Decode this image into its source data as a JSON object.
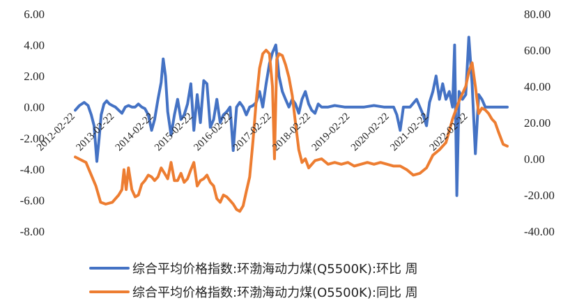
{
  "chart_data": {
    "type": "line",
    "title": "",
    "x_tick_labels": [
      "2012-02-22",
      "2013-02-22",
      "2014-02-22",
      "2015-02-22",
      "2016-02-22",
      "2017-02-22",
      "2018-02-22",
      "2019-02-22",
      "2020-02-22",
      "2021-02-22",
      "2022-02-22"
    ],
    "x_range": [
      "2012-02-22",
      "2023-02-22"
    ],
    "y_left": {
      "ticks": [
        "6.00",
        "4.00",
        "2.00",
        "0.00",
        "-2.00",
        "-4.00",
        "-6.00",
        "-8.00"
      ],
      "ylim": [
        -8,
        6
      ]
    },
    "y_right": {
      "ticks": [
        "80.00",
        "60.00",
        "40.00",
        "20.00",
        "0.00",
        "-20.00",
        "-40.00"
      ],
      "ylim": [
        -40,
        80
      ]
    },
    "grid": false,
    "legend_position": "bottom",
    "series": [
      {
        "name": "综合平均价格指数:环渤海动力煤(Q5500K):环比 周",
        "axis": "left",
        "color": "#4472C4",
        "points": [
          [
            "2012-02-22",
            -0.2
          ],
          [
            "2012-04-01",
            0.1
          ],
          [
            "2012-05-15",
            0.3
          ],
          [
            "2012-06-20",
            0.1
          ],
          [
            "2012-07-20",
            -0.5
          ],
          [
            "2012-08-15",
            -1.2
          ],
          [
            "2012-09-10",
            -3.5
          ],
          [
            "2012-10-01",
            -2.0
          ],
          [
            "2012-10-20",
            -0.5
          ],
          [
            "2012-11-15",
            0.2
          ],
          [
            "2012-12-10",
            0.4
          ],
          [
            "2013-01-05",
            0.2
          ],
          [
            "2013-02-01",
            0.1
          ],
          [
            "2013-03-01",
            0.0
          ],
          [
            "2013-04-01",
            -0.2
          ],
          [
            "2013-05-01",
            -0.4
          ],
          [
            "2013-06-01",
            0.0
          ],
          [
            "2013-07-01",
            0.1
          ],
          [
            "2013-08-01",
            0.0
          ],
          [
            "2013-09-01",
            0.0
          ],
          [
            "2013-10-01",
            0.2
          ],
          [
            "2013-11-01",
            0.0
          ],
          [
            "2013-12-01",
            -0.1
          ],
          [
            "2014-01-01",
            -0.5
          ],
          [
            "2014-02-01",
            -1.5
          ],
          [
            "2014-03-01",
            -0.8
          ],
          [
            "2014-04-01",
            0.5
          ],
          [
            "2014-05-01",
            1.6
          ],
          [
            "2014-05-20",
            3.1
          ],
          [
            "2014-06-10",
            2.0
          ],
          [
            "2014-07-01",
            -0.3
          ],
          [
            "2014-08-01",
            -1.8
          ],
          [
            "2014-09-01",
            -0.5
          ],
          [
            "2014-10-01",
            0.5
          ],
          [
            "2014-11-01",
            -0.8
          ],
          [
            "2014-12-01",
            -0.5
          ],
          [
            "2015-01-01",
            0.2
          ],
          [
            "2015-02-01",
            1.5
          ],
          [
            "2015-03-01",
            -1.5
          ],
          [
            "2015-04-01",
            0.8
          ],
          [
            "2015-05-01",
            -1.0
          ],
          [
            "2015-06-01",
            1.7
          ],
          [
            "2015-07-01",
            1.5
          ],
          [
            "2015-08-01",
            -1.3
          ],
          [
            "2015-09-01",
            -0.8
          ],
          [
            "2015-10-01",
            0.5
          ],
          [
            "2015-11-01",
            -1.0
          ],
          [
            "2015-12-01",
            -0.5
          ],
          [
            "2016-01-01",
            -0.3
          ],
          [
            "2016-02-01",
            0.0
          ],
          [
            "2016-03-01",
            -2.8
          ],
          [
            "2016-04-01",
            0.0
          ],
          [
            "2016-05-01",
            0.3
          ],
          [
            "2016-06-01",
            0.0
          ],
          [
            "2016-07-01",
            -0.5
          ],
          [
            "2016-08-01",
            0.0
          ],
          [
            "2016-09-01",
            0.1
          ],
          [
            "2016-10-01",
            0.3
          ],
          [
            "2016-11-01",
            1.0
          ],
          [
            "2016-12-01",
            0.0
          ],
          [
            "2017-01-01",
            1.5
          ],
          [
            "2017-02-01",
            2.8
          ],
          [
            "2017-03-01",
            3.5
          ],
          [
            "2017-04-01",
            4.0
          ],
          [
            "2017-05-01",
            2.0
          ],
          [
            "2017-06-01",
            1.0
          ],
          [
            "2017-07-01",
            0.5
          ],
          [
            "2017-08-01",
            0.0
          ],
          [
            "2017-09-01",
            0.5
          ],
          [
            "2017-10-01",
            0.2
          ],
          [
            "2017-11-01",
            -0.4
          ],
          [
            "2017-12-01",
            0.5
          ],
          [
            "2018-01-01",
            1.0
          ],
          [
            "2018-02-01",
            0.2
          ],
          [
            "2018-03-01",
            -0.2
          ],
          [
            "2018-04-01",
            -0.4
          ],
          [
            "2018-05-01",
            0.2
          ],
          [
            "2018-06-01",
            0.0
          ],
          [
            "2018-08-01",
            0.0
          ],
          [
            "2018-10-01",
            0.1
          ],
          [
            "2019-01-01",
            0.0
          ],
          [
            "2019-04-01",
            0.0
          ],
          [
            "2019-07-01",
            0.0
          ],
          [
            "2019-10-01",
            0.1
          ],
          [
            "2020-01-01",
            0.0
          ],
          [
            "2020-04-01",
            0.0
          ],
          [
            "2020-05-01",
            -0.5
          ],
          [
            "2020-06-01",
            -1.5
          ],
          [
            "2020-07-01",
            0.0
          ],
          [
            "2020-09-01",
            0.0
          ],
          [
            "2020-11-01",
            0.5
          ],
          [
            "2021-01-01",
            -0.5
          ],
          [
            "2021-02-01",
            -1.2
          ],
          [
            "2021-03-01",
            0.3
          ],
          [
            "2021-04-01",
            1.0
          ],
          [
            "2021-05-01",
            2.0
          ],
          [
            "2021-06-01",
            0.5
          ],
          [
            "2021-07-01",
            1.5
          ],
          [
            "2021-08-01",
            0.5
          ],
          [
            "2021-09-01",
            1.0
          ],
          [
            "2021-10-01",
            0.0
          ],
          [
            "2021-10-20",
            4.0
          ],
          [
            "2021-11-10",
            -5.7
          ],
          [
            "2021-12-01",
            1.0
          ],
          [
            "2022-01-01",
            0.5
          ],
          [
            "2022-02-01",
            0.8
          ],
          [
            "2022-03-01",
            4.5
          ],
          [
            "2022-04-01",
            1.5
          ],
          [
            "2022-05-01",
            -3.0
          ],
          [
            "2022-06-01",
            0.8
          ],
          [
            "2022-07-01",
            0.5
          ],
          [
            "2022-08-01",
            0.0
          ],
          [
            "2022-09-01",
            0.0
          ],
          [
            "2022-10-01",
            0.0
          ],
          [
            "2022-12-01",
            0.0
          ],
          [
            "2023-02-22",
            0.0
          ]
        ]
      },
      {
        "name": "综合平均价格指数:环渤海动力煤(O5500K):同比 周",
        "axis": "right",
        "color": "#ED7D31",
        "points": [
          [
            "2012-02-22",
            1.0
          ],
          [
            "2012-06-01",
            -2.0
          ],
          [
            "2012-09-01",
            -15.0
          ],
          [
            "2012-10-15",
            -24.0
          ],
          [
            "2012-12-01",
            -25.0
          ],
          [
            "2013-02-01",
            -24.0
          ],
          [
            "2013-04-01",
            -20.0
          ],
          [
            "2013-05-01",
            -17.0
          ],
          [
            "2013-05-20",
            -6.0
          ],
          [
            "2013-06-10",
            -17.0
          ],
          [
            "2013-07-01",
            -5.0
          ],
          [
            "2013-08-01",
            -17.0
          ],
          [
            "2013-09-01",
            -21.0
          ],
          [
            "2013-10-01",
            -20.0
          ],
          [
            "2013-11-01",
            -14.0
          ],
          [
            "2013-12-01",
            -12.0
          ],
          [
            "2014-01-01",
            -9.0
          ],
          [
            "2014-02-01",
            -10.0
          ],
          [
            "2014-03-01",
            -12.0
          ],
          [
            "2014-04-01",
            -10.0
          ],
          [
            "2014-05-01",
            -5.0
          ],
          [
            "2014-06-01",
            -8.0
          ],
          [
            "2014-07-01",
            -11.0
          ],
          [
            "2014-08-01",
            -2.0
          ],
          [
            "2014-09-01",
            -12.0
          ],
          [
            "2014-10-01",
            -12.0
          ],
          [
            "2014-11-01",
            -8.0
          ],
          [
            "2014-12-01",
            -13.0
          ],
          [
            "2015-01-01",
            -11.0
          ],
          [
            "2015-02-01",
            -6.0
          ],
          [
            "2015-03-01",
            -2.0
          ],
          [
            "2015-04-01",
            -15.0
          ],
          [
            "2015-05-01",
            -12.0
          ],
          [
            "2015-06-01",
            -11.0
          ],
          [
            "2015-07-01",
            -9.0
          ],
          [
            "2015-08-01",
            -13.0
          ],
          [
            "2015-09-01",
            -15.0
          ],
          [
            "2015-10-01",
            -22.0
          ],
          [
            "2015-11-01",
            -24.0
          ],
          [
            "2015-12-01",
            -20.0
          ],
          [
            "2016-01-01",
            -21.0
          ],
          [
            "2016-02-01",
            -23.0
          ],
          [
            "2016-03-01",
            -25.0
          ],
          [
            "2016-04-01",
            -28.0
          ],
          [
            "2016-05-01",
            -29.0
          ],
          [
            "2016-06-01",
            -26.0
          ],
          [
            "2016-07-01",
            -18.0
          ],
          [
            "2016-08-01",
            -10.0
          ],
          [
            "2016-09-01",
            10.0
          ],
          [
            "2016-10-01",
            32.0
          ],
          [
            "2016-11-01",
            50.0
          ],
          [
            "2016-12-01",
            58.0
          ],
          [
            "2017-01-01",
            60.0
          ],
          [
            "2017-02-01",
            58.0
          ],
          [
            "2017-03-01",
            40.0
          ],
          [
            "2017-03-20",
            0.0
          ],
          [
            "2017-04-10",
            55.0
          ],
          [
            "2017-05-01",
            58.0
          ],
          [
            "2017-06-01",
            57.0
          ],
          [
            "2017-07-01",
            52.0
          ],
          [
            "2017-08-01",
            45.0
          ],
          [
            "2017-09-01",
            35.0
          ],
          [
            "2017-10-01",
            20.0
          ],
          [
            "2017-11-01",
            5.0
          ],
          [
            "2017-12-01",
            -2.0
          ],
          [
            "2018-01-01",
            0.0
          ],
          [
            "2018-02-01",
            -5.0
          ],
          [
            "2018-04-01",
            -1.0
          ],
          [
            "2018-06-01",
            0.0
          ],
          [
            "2018-08-01",
            -3.0
          ],
          [
            "2018-10-01",
            -2.0
          ],
          [
            "2018-12-01",
            -3.0
          ],
          [
            "2019-02-01",
            -2.0
          ],
          [
            "2019-04-01",
            -4.0
          ],
          [
            "2019-06-01",
            -3.0
          ],
          [
            "2019-08-01",
            -2.0
          ],
          [
            "2019-10-01",
            -3.0
          ],
          [
            "2019-12-01",
            -2.0
          ],
          [
            "2020-02-01",
            -3.0
          ],
          [
            "2020-04-01",
            -4.0
          ],
          [
            "2020-06-01",
            -4.0
          ],
          [
            "2020-08-01",
            -6.0
          ],
          [
            "2020-10-01",
            -9.0
          ],
          [
            "2020-12-01",
            -8.0
          ],
          [
            "2021-02-01",
            -5.0
          ],
          [
            "2021-04-01",
            2.0
          ],
          [
            "2021-06-01",
            5.0
          ],
          [
            "2021-08-01",
            9.0
          ],
          [
            "2021-10-01",
            22.0
          ],
          [
            "2021-12-01",
            32.0
          ],
          [
            "2022-02-01",
            40.0
          ],
          [
            "2022-03-01",
            48.0
          ],
          [
            "2022-04-01",
            53.0
          ],
          [
            "2022-05-01",
            40.0
          ],
          [
            "2022-06-01",
            25.0
          ],
          [
            "2022-07-01",
            28.0
          ],
          [
            "2022-08-01",
            27.0
          ],
          [
            "2022-09-01",
            25.0
          ],
          [
            "2022-10-01",
            22.0
          ],
          [
            "2022-11-01",
            20.0
          ],
          [
            "2022-12-01",
            15.0
          ],
          [
            "2023-01-15",
            8.0
          ],
          [
            "2023-02-22",
            7.0
          ]
        ]
      }
    ]
  }
}
